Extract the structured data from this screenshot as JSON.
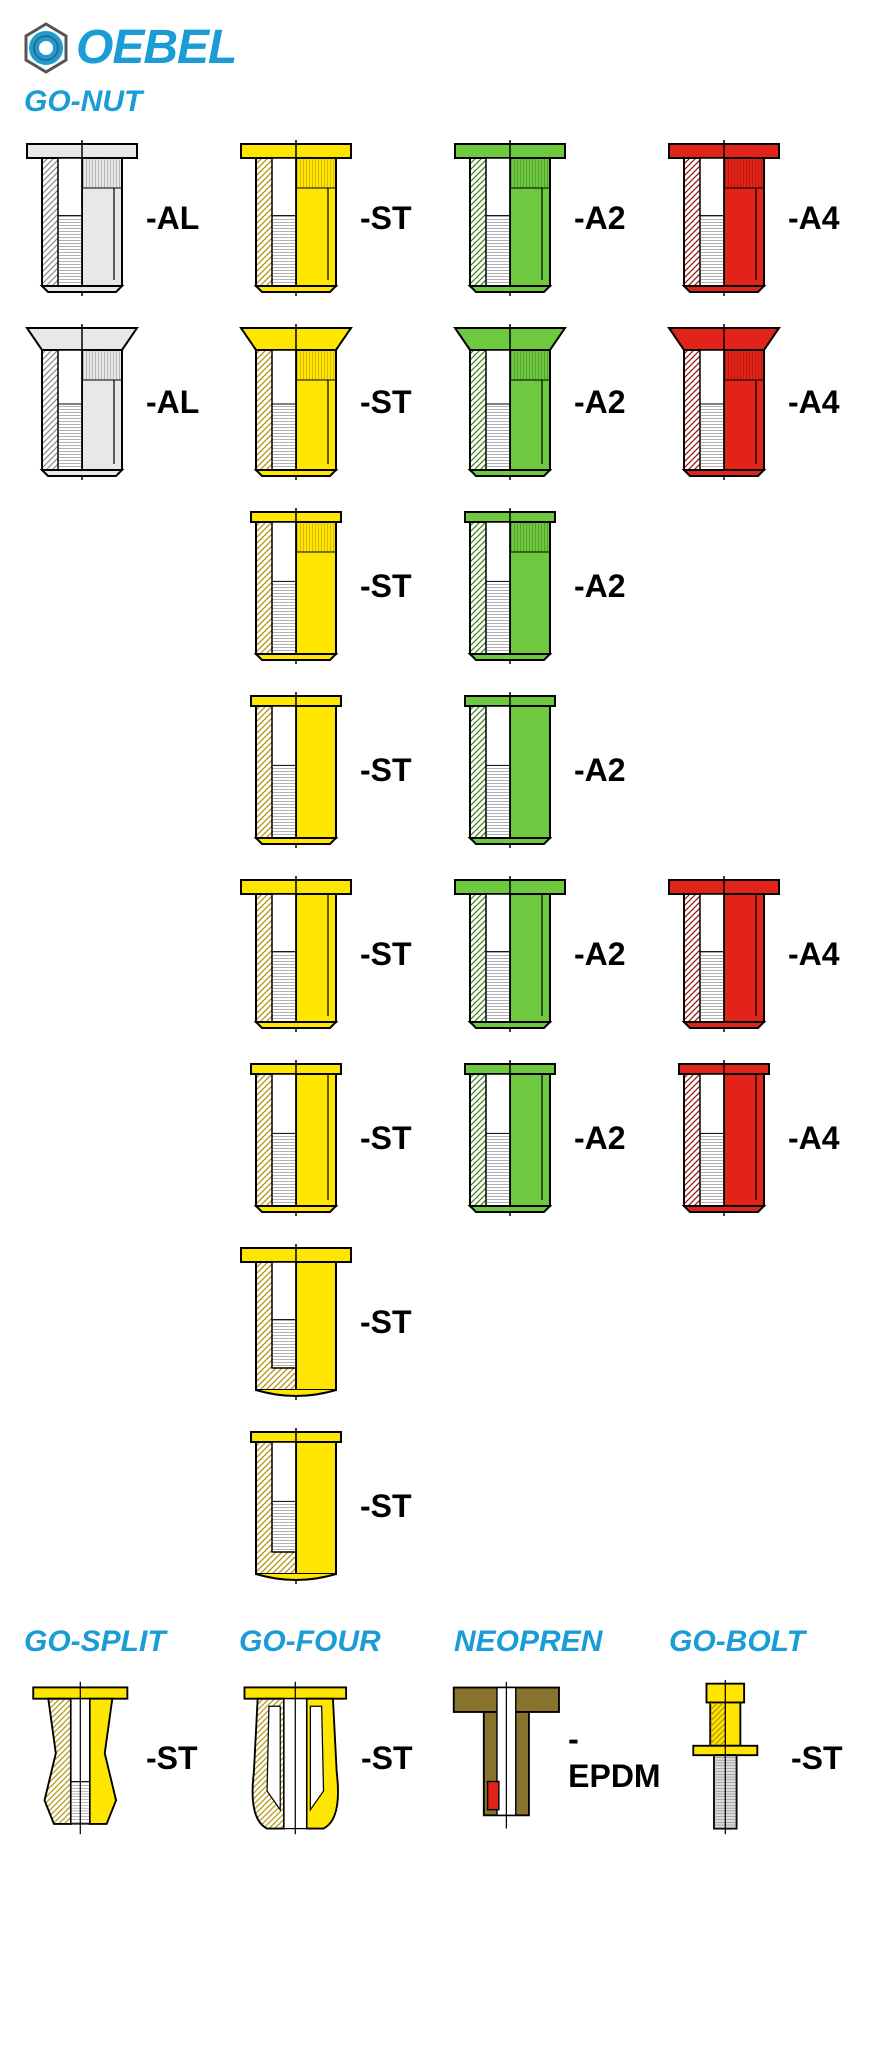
{
  "logo_text": "OEBEL",
  "section_gonut": "GO-NUT",
  "section_gosplit": "GO-SPLIT",
  "section_gofour": "GO-FOUR",
  "section_neopren": "NEOPREN",
  "section_gobolt": "GO-BOLT",
  "colors": {
    "al_fill": "#e8e8e8",
    "al_stroke": "#555555",
    "st_fill": "#ffe600",
    "st_stroke": "#b08c00",
    "a2_fill": "#6ec940",
    "a2_stroke": "#3a8016",
    "a4_fill": "#e2231a",
    "a4_stroke": "#951008",
    "epdm_fill": "#88732e",
    "epdm_stroke": "#4a3d12",
    "title_color": "#1a9dd6"
  },
  "grid": [
    [
      {
        "material": "AL",
        "label": "-AL",
        "head": "flat",
        "body": "knurl-hex"
      },
      {
        "material": "ST",
        "label": "-ST",
        "head": "flat",
        "body": "knurl-hex"
      },
      {
        "material": "A2",
        "label": "-A2",
        "head": "flat",
        "body": "knurl-hex"
      },
      {
        "material": "A4",
        "label": "-A4",
        "head": "flat",
        "body": "knurl-hex"
      }
    ],
    [
      {
        "material": "AL",
        "label": "-AL",
        "head": "csk",
        "body": "knurl-hex"
      },
      {
        "material": "ST",
        "label": "-ST",
        "head": "csk",
        "body": "knurl-hex"
      },
      {
        "material": "A2",
        "label": "-A2",
        "head": "csk",
        "body": "knurl-hex"
      },
      {
        "material": "A4",
        "label": "-A4",
        "head": "csk",
        "body": "knurl-hex"
      }
    ],
    [
      null,
      {
        "material": "ST",
        "label": "-ST",
        "head": "reduced",
        "body": "knurl-round"
      },
      {
        "material": "A2",
        "label": "-A2",
        "head": "reduced",
        "body": "knurl-round"
      },
      null
    ],
    [
      null,
      {
        "material": "ST",
        "label": "-ST",
        "head": "reduced",
        "body": "round"
      },
      {
        "material": "A2",
        "label": "-A2",
        "head": "reduced",
        "body": "round"
      },
      null
    ],
    [
      null,
      {
        "material": "ST",
        "label": "-ST",
        "head": "flat",
        "body": "full-hex"
      },
      {
        "material": "A2",
        "label": "-A2",
        "head": "flat",
        "body": "full-hex"
      },
      {
        "material": "A4",
        "label": "-A4",
        "head": "flat",
        "body": "full-hex"
      }
    ],
    [
      null,
      {
        "material": "ST",
        "label": "-ST",
        "head": "reduced",
        "body": "full-hex"
      },
      {
        "material": "A2",
        "label": "-A2",
        "head": "reduced",
        "body": "full-hex"
      },
      {
        "material": "A4",
        "label": "-A4",
        "head": "reduced",
        "body": "full-hex"
      }
    ],
    [
      null,
      {
        "material": "ST",
        "label": "-ST",
        "head": "flat",
        "body": "closed"
      },
      null,
      null
    ],
    [
      null,
      {
        "material": "ST",
        "label": "-ST",
        "head": "reduced",
        "body": "closed"
      },
      null,
      null
    ]
  ],
  "bottom": [
    {
      "key": "gosplit",
      "material": "ST",
      "label": "-ST",
      "shape": "split"
    },
    {
      "key": "gofour",
      "material": "ST",
      "label": "-ST",
      "shape": "four"
    },
    {
      "key": "neopren",
      "material": "EPDM",
      "label": "-EPDM",
      "shape": "neopren"
    },
    {
      "key": "gobolt",
      "material": "ST",
      "label": "-ST",
      "shape": "bolt"
    }
  ]
}
